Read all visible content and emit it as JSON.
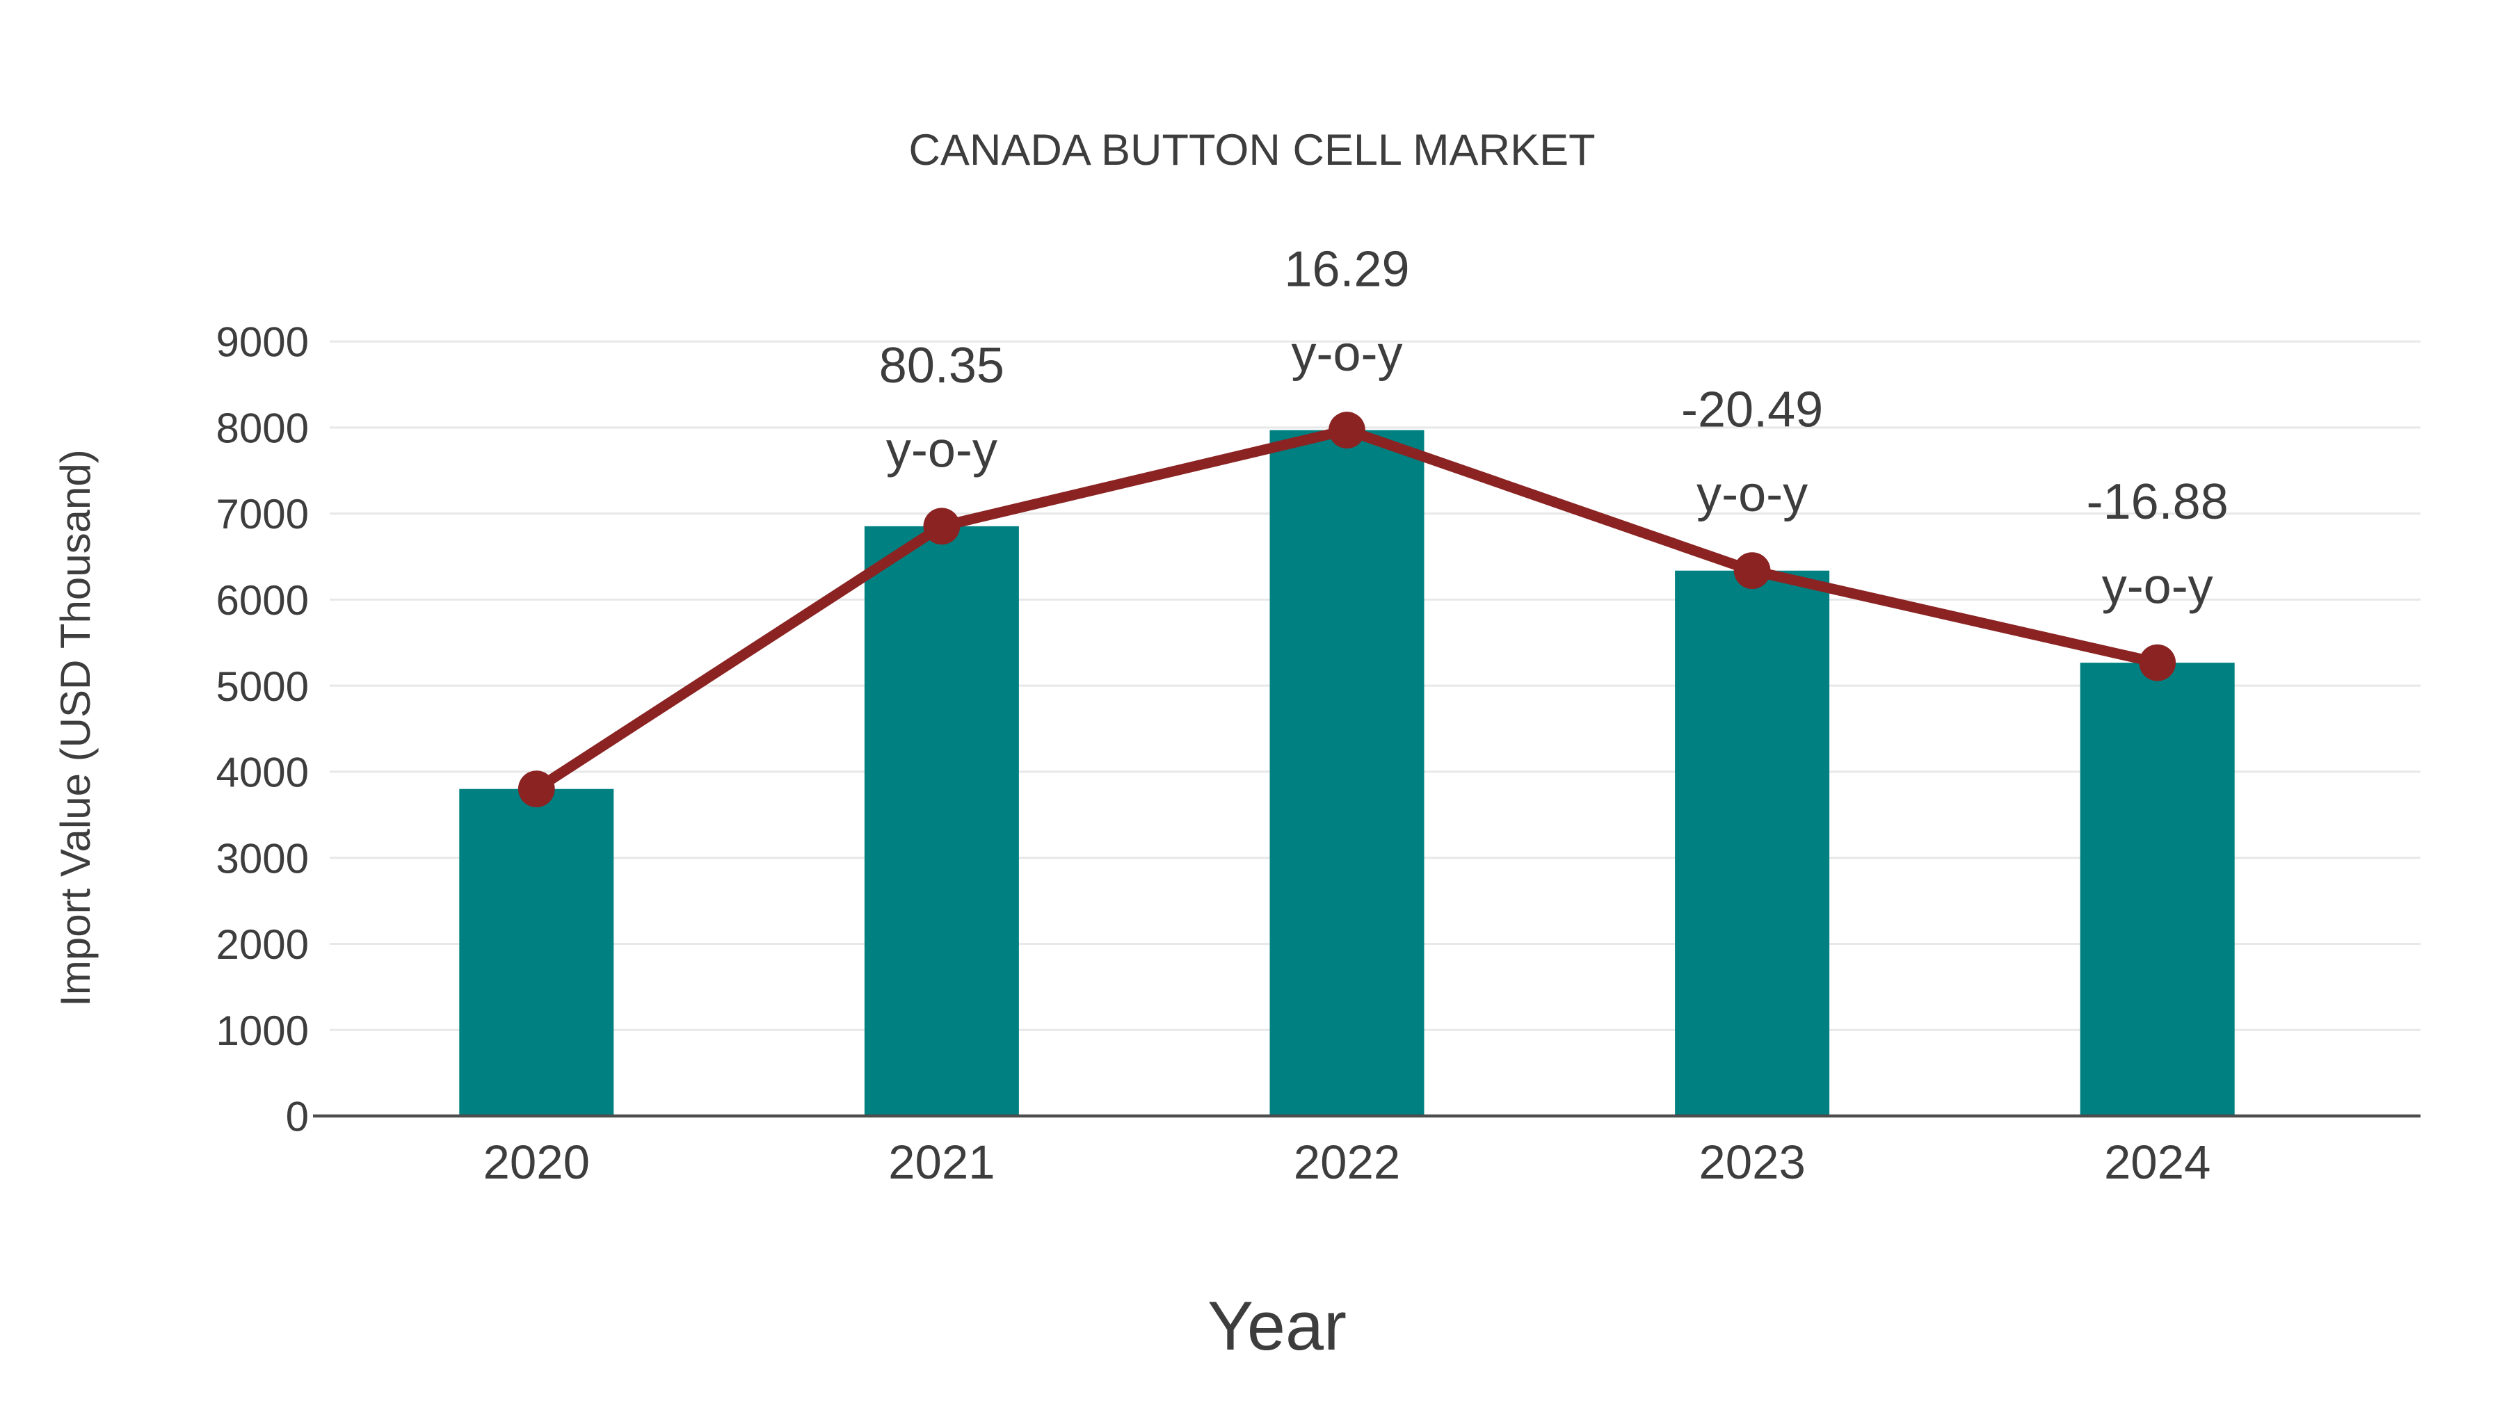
{
  "chart_data": {
    "type": "bar",
    "subtype": "bar-with-line-overlay",
    "title": "CANADA BUTTON CELL MARKET",
    "xlabel": "Year",
    "ylabel": "Import Value (USD Thousand)",
    "categories": [
      "2020",
      "2021",
      "2022",
      "2023",
      "2024"
    ],
    "series": [
      {
        "name": "Import Value",
        "type": "bar",
        "color": "#008080",
        "values": [
          3800,
          6853,
          7970,
          6337,
          5267
        ]
      },
      {
        "name": "Y-o-Y Trend",
        "type": "line",
        "color": "#8B2323",
        "marker": "circle",
        "values": [
          3800,
          6853,
          7970,
          6337,
          5267
        ]
      }
    ],
    "yoy_growth_pct": [
      null,
      80.35,
      16.29,
      -20.49,
      -16.88
    ],
    "annotations": [
      {
        "category": "2021",
        "line1": "80.35",
        "line2": "y-o-y"
      },
      {
        "category": "2022",
        "line1": "16.29",
        "line2": "y-o-y"
      },
      {
        "category": "2023",
        "line1": "-20.49",
        "line2": "y-o-y"
      },
      {
        "category": "2024",
        "line1": "-16.88",
        "line2": "y-o-y"
      }
    ],
    "ylim": [
      0,
      9000
    ],
    "yticks": [
      0,
      1000,
      2000,
      3000,
      4000,
      5000,
      6000,
      7000,
      8000,
      9000
    ],
    "grid": true,
    "legend_position": "none",
    "colors": {
      "bar": "#008080",
      "line": "#8B2323",
      "marker": "#8B2323",
      "text": "#3d3d3d",
      "grid": "#e8e8e8",
      "axis": "#4d4d4d",
      "background": "#ffffff"
    }
  }
}
